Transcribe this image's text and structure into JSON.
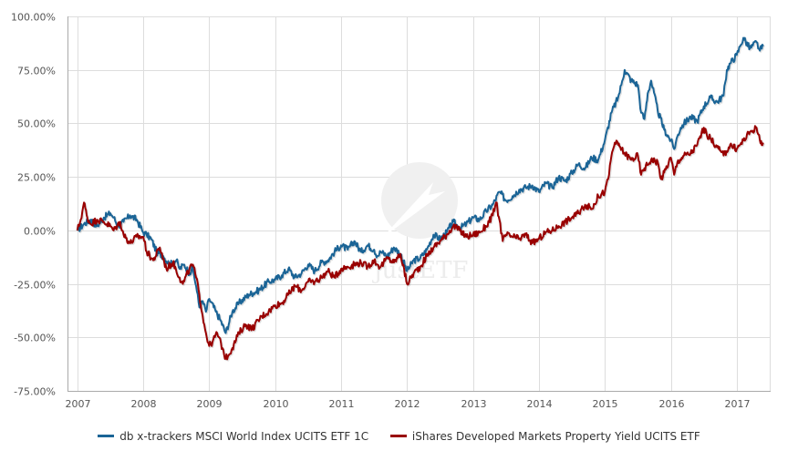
{
  "chart_data": {
    "type": "line",
    "title": "",
    "xlabel": "",
    "ylabel": "",
    "xlim": [
      2006.85,
      2017.5
    ],
    "ylim": [
      -75,
      100
    ],
    "grid": true,
    "legend_position": "bottom-center",
    "y_ticks": [
      100,
      75,
      50,
      25,
      0,
      -25,
      -50,
      -75
    ],
    "y_tick_labels": [
      "100.00%",
      "75.00%",
      "50.00%",
      "25.00%",
      "0.00%",
      "-25.00%",
      "-50.00%",
      "-75.00%"
    ],
    "x_ticks": [
      2007,
      2008,
      2009,
      2010,
      2011,
      2012,
      2013,
      2014,
      2015,
      2016,
      2017
    ],
    "x_tick_labels": [
      "2007",
      "2008",
      "2009",
      "2010",
      "2011",
      "2012",
      "2013",
      "2014",
      "2015",
      "2016",
      "2017"
    ],
    "watermark": "justETF",
    "series": [
      {
        "name": "db x-trackers MSCI World Index UCITS ETF 1C",
        "color": "#1a6496",
        "x": [
          2007.0,
          2007.1,
          2007.2,
          2007.3,
          2007.4,
          2007.5,
          2007.55,
          2007.62,
          2007.7,
          2007.8,
          2007.9,
          2008.0,
          2008.05,
          2008.12,
          2008.2,
          2008.3,
          2008.4,
          2008.5,
          2008.55,
          2008.62,
          2008.7,
          2008.75,
          2008.8,
          2008.85,
          2008.9,
          2008.95,
          2009.0,
          2009.1,
          2009.17,
          2009.25,
          2009.35,
          2009.45,
          2009.6,
          2009.75,
          2009.9,
          2010.0,
          2010.1,
          2010.2,
          2010.3,
          2010.4,
          2010.5,
          2010.6,
          2010.7,
          2010.8,
          2010.9,
          2011.0,
          2011.1,
          2011.2,
          2011.3,
          2011.4,
          2011.5,
          2011.55,
          2011.6,
          2011.7,
          2011.8,
          2011.9,
          2012.0,
          2012.1,
          2012.2,
          2012.3,
          2012.4,
          2012.5,
          2012.6,
          2012.7,
          2012.8,
          2012.9,
          2013.0,
          2013.1,
          2013.2,
          2013.3,
          2013.4,
          2013.5,
          2013.6,
          2013.7,
          2013.8,
          2013.9,
          2014.0,
          2014.1,
          2014.2,
          2014.3,
          2014.4,
          2014.5,
          2014.6,
          2014.7,
          2014.8,
          2014.9,
          2015.0,
          2015.1,
          2015.2,
          2015.25,
          2015.3,
          2015.4,
          2015.5,
          2015.55,
          2015.6,
          2015.65,
          2015.7,
          2015.8,
          2015.9,
          2016.0,
          2016.05,
          2016.1,
          2016.15,
          2016.2,
          2016.3,
          2016.4,
          2016.5,
          2016.6,
          2016.7,
          2016.8,
          2016.85,
          2016.9,
          2017.0,
          2017.05,
          2017.1,
          2017.2,
          2017.3,
          2017.35,
          2017.4
        ],
        "values": [
          0.0,
          3.0,
          5.0,
          2.0,
          6.0,
          8.0,
          6.0,
          2.0,
          4.0,
          7.0,
          5.0,
          -1.0,
          -2.0,
          -4.0,
          -10.0,
          -12.0,
          -16.0,
          -14.0,
          -18.0,
          -16.0,
          -20.0,
          -18.0,
          -26.0,
          -36.0,
          -33.0,
          -38.0,
          -32.0,
          -38.0,
          -42.0,
          -48.0,
          -38.0,
          -34.0,
          -30.0,
          -28.0,
          -24.0,
          -23.0,
          -21.0,
          -18.0,
          -22.0,
          -20.0,
          -16.0,
          -19.0,
          -15.0,
          -14.0,
          -10.0,
          -7.0,
          -9.0,
          -5.0,
          -10.0,
          -7.0,
          -9.0,
          -12.0,
          -10.0,
          -12.0,
          -8.0,
          -11.0,
          -19.0,
          -14.0,
          -13.0,
          -9.0,
          -2.0,
          -4.0,
          -1.0,
          4.0,
          1.0,
          3.0,
          6.0,
          5.0,
          9.0,
          12.0,
          18.0,
          14.0,
          16.0,
          19.0,
          20.0,
          21.0,
          18.0,
          22.0,
          20.0,
          25.0,
          23.0,
          27.0,
          31.0,
          29.0,
          34.0,
          33.0,
          42.0,
          55.0,
          62.0,
          68.0,
          75.0,
          70.0,
          68.0,
          55.0,
          52.0,
          64.0,
          70.0,
          56.0,
          47.0,
          42.0,
          38.0,
          44.0,
          48.0,
          50.0,
          53.0,
          51.0,
          58.0,
          62.0,
          60.0,
          63.0,
          75.0,
          78.0,
          82.0,
          86.0,
          90.0,
          85.0,
          88.0,
          84.0,
          86.0
        ]
      },
      {
        "name": "iShares Developed Markets Property Yield UCITS ETF",
        "color": "#990000",
        "x": [
          2007.0,
          2007.05,
          2007.1,
          2007.15,
          2007.2,
          2007.3,
          2007.4,
          2007.5,
          2007.55,
          2007.65,
          2007.7,
          2007.8,
          2007.9,
          2008.0,
          2008.05,
          2008.15,
          2008.25,
          2008.35,
          2008.45,
          2008.55,
          2008.6,
          2008.7,
          2008.75,
          2008.8,
          2008.85,
          2008.9,
          2008.95,
          2009.0,
          2009.05,
          2009.12,
          2009.2,
          2009.25,
          2009.35,
          2009.45,
          2009.55,
          2009.65,
          2009.8,
          2009.9,
          2010.0,
          2010.1,
          2010.2,
          2010.3,
          2010.4,
          2010.5,
          2010.6,
          2010.7,
          2010.8,
          2010.9,
          2011.0,
          2011.1,
          2011.2,
          2011.3,
          2011.4,
          2011.5,
          2011.55,
          2011.6,
          2011.7,
          2011.8,
          2011.9,
          2012.0,
          2012.1,
          2012.2,
          2012.3,
          2012.4,
          2012.5,
          2012.6,
          2012.7,
          2012.8,
          2012.9,
          2013.0,
          2013.1,
          2013.2,
          2013.3,
          2013.35,
          2013.4,
          2013.45,
          2013.5,
          2013.6,
          2013.7,
          2013.8,
          2013.9,
          2014.0,
          2014.1,
          2014.2,
          2014.3,
          2014.4,
          2014.5,
          2014.6,
          2014.7,
          2014.8,
          2014.9,
          2015.0,
          2015.05,
          2015.1,
          2015.15,
          2015.2,
          2015.3,
          2015.4,
          2015.5,
          2015.55,
          2015.6,
          2015.7,
          2015.8,
          2015.85,
          2015.9,
          2016.0,
          2016.05,
          2016.1,
          2016.2,
          2016.3,
          2016.4,
          2016.5,
          2016.55,
          2016.6,
          2016.7,
          2016.8,
          2016.9,
          2017.0,
          2017.1,
          2017.2,
          2017.3,
          2017.35,
          2017.4
        ],
        "values": [
          0.0,
          5.0,
          13.0,
          6.0,
          3.0,
          5.0,
          4.0,
          2.0,
          0.0,
          4.0,
          -2.0,
          -6.0,
          -3.0,
          -3.0,
          -10.0,
          -14.0,
          -8.0,
          -18.0,
          -15.0,
          -22.0,
          -25.0,
          -18.0,
          -16.0,
          -22.0,
          -30.0,
          -40.0,
          -48.0,
          -54.0,
          -52.0,
          -48.0,
          -55.0,
          -60.0,
          -55.0,
          -48.0,
          -44.0,
          -46.0,
          -40.0,
          -38.0,
          -35.0,
          -34.0,
          -30.0,
          -26.0,
          -28.0,
          -24.0,
          -24.0,
          -22.0,
          -19.0,
          -22.0,
          -18.0,
          -17.0,
          -16.0,
          -15.0,
          -17.0,
          -14.0,
          -16.0,
          -17.0,
          -13.0,
          -15.0,
          -11.0,
          -25.0,
          -20.0,
          -17.0,
          -12.0,
          -8.0,
          -5.0,
          -2.0,
          2.0,
          0.0,
          -3.0,
          -2.0,
          -1.0,
          2.0,
          7.0,
          13.0,
          5.0,
          -5.0,
          -2.0,
          -3.0,
          -4.0,
          -2.0,
          -6.0,
          -4.0,
          -1.0,
          0.0,
          2.0,
          4.0,
          6.0,
          8.0,
          12.0,
          10.0,
          16.0,
          18.0,
          24.0,
          35.0,
          41.0,
          40.0,
          36.0,
          33.0,
          35.0,
          26.0,
          29.0,
          33.0,
          32.0,
          24.0,
          27.0,
          34.0,
          26.0,
          32.0,
          35.0,
          36.0,
          40.0,
          48.0,
          44.0,
          43.0,
          39.0,
          35.0,
          40.0,
          38.0,
          42.0,
          46.0,
          48.0,
          42.0,
          41.0
        ]
      }
    ]
  }
}
